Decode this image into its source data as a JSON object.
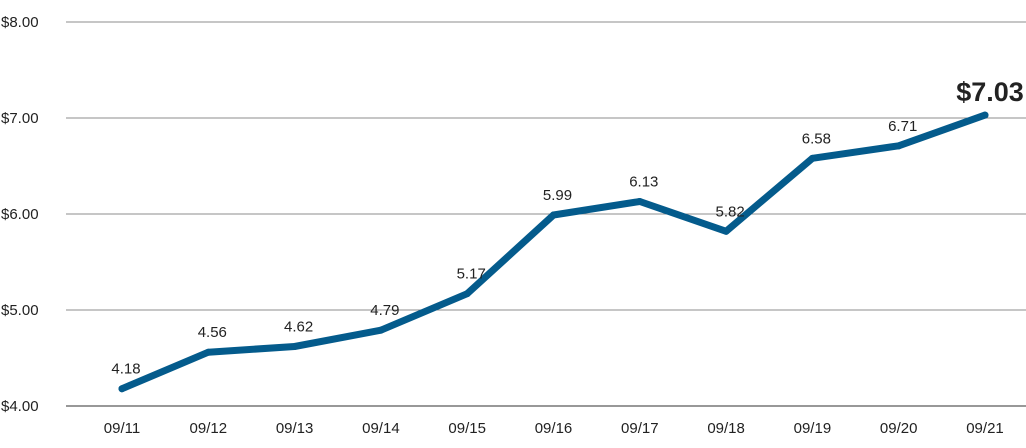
{
  "chart_data": {
    "type": "line",
    "categories": [
      "09/11",
      "09/12",
      "09/13",
      "09/14",
      "09/15",
      "09/16",
      "09/17",
      "09/18",
      "09/19",
      "09/20",
      "09/21"
    ],
    "series": [
      {
        "values": [
          4.18,
          4.56,
          4.62,
          4.79,
          5.17,
          5.99,
          6.13,
          5.82,
          6.58,
          6.71,
          7.03
        ],
        "data_labels": [
          "4.18",
          "4.56",
          "4.62",
          "4.79",
          "5.17",
          "5.99",
          "6.13",
          "5.82",
          "6.58",
          "6.71",
          "$7.03"
        ]
      }
    ],
    "y_ticks": [
      4,
      5,
      6,
      7,
      8
    ],
    "y_tick_labels": [
      "$4.00",
      "$5.00",
      "$6.00",
      "$7.00",
      "$8.00"
    ],
    "ylim": [
      4,
      8
    ],
    "grid": "horizontal",
    "legend": "none",
    "colors": {
      "line": "#045b8c",
      "grid": "#8c8c8c",
      "text": "#222222"
    }
  }
}
